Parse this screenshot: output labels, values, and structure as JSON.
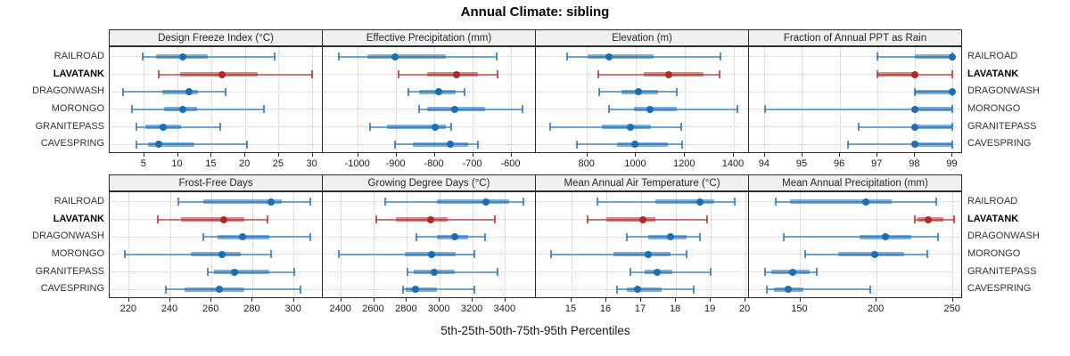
{
  "title": "Annual Climate: sibling",
  "xlabel": "5th-25th-50th-75th-95th Percentiles",
  "percentile_labels": [
    "5th",
    "25th",
    "50th",
    "75th",
    "95th"
  ],
  "sites": [
    "RAILROAD",
    "LAVATANK",
    "DRAGONWASH",
    "MORONGO",
    "GRANITEPASS",
    "CAVESPRING"
  ],
  "highlight_site": "LAVATANK",
  "colors": {
    "normal": "#1c6eb4",
    "highlight": "#b22828",
    "grid": "#cdcdcd",
    "strip_bg": "#f0f0f0",
    "border": "#2b2b2b"
  },
  "chart_data": [
    {
      "type": "dotplot-range",
      "title": "Design Freeze Index (°C)",
      "xlim": [
        0,
        31.5
      ],
      "ticks": [
        5,
        10,
        15,
        20,
        25,
        30
      ],
      "series": [
        {
          "name": "RAILROAD",
          "percentiles": [
            4.8,
            6.8,
            10.7,
            14.4,
            24.3
          ]
        },
        {
          "name": "LAVATANK",
          "percentiles": [
            7.1,
            10.3,
            16.6,
            21.8,
            29.9
          ]
        },
        {
          "name": "DRAGONWASH",
          "percentiles": [
            1.9,
            7.7,
            11.6,
            13.0,
            17.1
          ]
        },
        {
          "name": "MORONGO",
          "percentiles": [
            3.2,
            7.9,
            10.7,
            12.8,
            22.7
          ]
        },
        {
          "name": "GRANITEPASS",
          "percentiles": [
            3.9,
            5.1,
            7.8,
            10.4,
            16.3
          ]
        },
        {
          "name": "CAVESPRING",
          "percentiles": [
            3.9,
            5.5,
            7.2,
            12.5,
            20.3
          ]
        }
      ]
    },
    {
      "type": "dotplot-range",
      "title": "Effective Precipitation (mm)",
      "xlim": [
        -1090,
        -536
      ],
      "ticks": [
        -1000,
        -900,
        -800,
        -700,
        -600
      ],
      "series": [
        {
          "name": "RAILROAD",
          "percentiles": [
            -1050,
            -975,
            -903,
            -772,
            -639
          ]
        },
        {
          "name": "LAVATANK",
          "percentiles": [
            -895,
            -820,
            -743,
            -688,
            -637
          ]
        },
        {
          "name": "DRAGONWASH",
          "percentiles": [
            -869,
            -841,
            -789,
            -745,
            -722
          ]
        },
        {
          "name": "MORONGO",
          "percentiles": [
            -840,
            -820,
            -748,
            -668,
            -570
          ]
        },
        {
          "name": "GRANITEPASS",
          "percentiles": [
            -968,
            -925,
            -800,
            -770,
            -757
          ]
        },
        {
          "name": "CAVESPRING",
          "percentiles": [
            -903,
            -858,
            -759,
            -712,
            -688
          ]
        }
      ]
    },
    {
      "type": "dotplot-range",
      "title": "Elevation (m)",
      "xlim": [
        593,
        1462
      ],
      "ticks": [
        800,
        1000,
        1200,
        1400
      ],
      "series": [
        {
          "name": "RAILROAD",
          "percentiles": [
            716,
            800,
            887,
            1073,
            1345
          ]
        },
        {
          "name": "LAVATANK",
          "percentiles": [
            844,
            1030,
            1135,
            1275,
            1342
          ]
        },
        {
          "name": "DRAGONWASH",
          "percentiles": [
            847,
            940,
            1011,
            1090,
            1167
          ]
        },
        {
          "name": "MORONGO",
          "percentiles": [
            887,
            990,
            1055,
            1165,
            1415
          ]
        },
        {
          "name": "GRANITEPASS",
          "percentiles": [
            647,
            860,
            978,
            1060,
            1185
          ]
        },
        {
          "name": "CAVESPRING",
          "percentiles": [
            756,
            920,
            996,
            1130,
            1189
          ]
        }
      ]
    },
    {
      "type": "dotplot-range",
      "title": "Fraction of Annual PPT as Rain",
      "xlim": [
        93.6,
        99.25
      ],
      "ticks": [
        94,
        95,
        96,
        97,
        98,
        99
      ],
      "series": [
        {
          "name": "RAILROAD",
          "percentiles": [
            97,
            98,
            99,
            99,
            99
          ]
        },
        {
          "name": "LAVATANK",
          "percentiles": [
            97,
            97,
            98,
            98,
            99
          ]
        },
        {
          "name": "DRAGONWASH",
          "percentiles": [
            98,
            98,
            99,
            99,
            99
          ]
        },
        {
          "name": "MORONGO",
          "percentiles": [
            94,
            98,
            98,
            99,
            99
          ]
        },
        {
          "name": "GRANITEPASS",
          "percentiles": [
            96.5,
            98,
            98,
            99,
            99
          ]
        },
        {
          "name": "CAVESPRING",
          "percentiles": [
            96.2,
            98,
            98,
            99,
            99
          ]
        }
      ]
    },
    {
      "type": "dotplot-range",
      "title": "Frost-Free Days",
      "xlim": [
        211,
        314
      ],
      "ticks": [
        220,
        240,
        260,
        280,
        300
      ],
      "series": [
        {
          "name": "RAILROAD",
          "percentiles": [
            244,
            256,
            289,
            294,
            308
          ]
        },
        {
          "name": "LAVATANK",
          "percentiles": [
            234,
            245,
            266,
            276,
            287
          ]
        },
        {
          "name": "DRAGONWASH",
          "percentiles": [
            256,
            263,
            275,
            288,
            308
          ]
        },
        {
          "name": "MORONGO",
          "percentiles": [
            218,
            250,
            265,
            274,
            289
          ]
        },
        {
          "name": "GRANITEPASS",
          "percentiles": [
            258,
            261,
            271,
            288,
            300
          ]
        },
        {
          "name": "CAVESPRING",
          "percentiles": [
            238,
            247,
            264,
            276,
            303
          ]
        }
      ]
    },
    {
      "type": "dotplot-range",
      "title": "Growing Degree Days (°C)",
      "xlim": [
        2293,
        3585
      ],
      "ticks": [
        2400,
        2600,
        2800,
        3000,
        3200,
        3400
      ],
      "series": [
        {
          "name": "RAILROAD",
          "percentiles": [
            2670,
            2980,
            3280,
            3420,
            3510
          ]
        },
        {
          "name": "LAVATANK",
          "percentiles": [
            2615,
            2730,
            2945,
            3050,
            3335
          ]
        },
        {
          "name": "DRAGONWASH",
          "percentiles": [
            2855,
            2980,
            3090,
            3175,
            3275
          ]
        },
        {
          "name": "MORONGO",
          "percentiles": [
            2385,
            2785,
            2950,
            3095,
            3210
          ]
        },
        {
          "name": "GRANITEPASS",
          "percentiles": [
            2805,
            2840,
            2965,
            3090,
            3350
          ]
        },
        {
          "name": "CAVESPRING",
          "percentiles": [
            2775,
            2795,
            2850,
            2980,
            3210
          ]
        }
      ]
    },
    {
      "type": "dotplot-range",
      "title": "Mean Annual Air Temperature (°C)",
      "xlim": [
        14.0,
        20.1
      ],
      "ticks": [
        15,
        16,
        17,
        18,
        19,
        20
      ],
      "series": [
        {
          "name": "RAILROAD",
          "percentiles": [
            15.75,
            17.4,
            18.7,
            19.1,
            19.7
          ]
        },
        {
          "name": "LAVATANK",
          "percentiles": [
            15.45,
            16.0,
            17.05,
            17.4,
            18.9
          ]
        },
        {
          "name": "DRAGONWASH",
          "percentiles": [
            16.6,
            17.2,
            17.85,
            18.3,
            18.7
          ]
        },
        {
          "name": "MORONGO",
          "percentiles": [
            14.4,
            16.2,
            17.2,
            17.85,
            18.3
          ]
        },
        {
          "name": "GRANITEPASS",
          "percentiles": [
            16.7,
            17.1,
            17.45,
            17.9,
            19.0
          ]
        },
        {
          "name": "CAVESPRING",
          "percentiles": [
            16.3,
            16.6,
            16.9,
            17.6,
            18.5
          ]
        }
      ]
    },
    {
      "type": "dotplot-range",
      "title": "Mean Annual Precipitation (mm)",
      "xlim": [
        117,
        256
      ],
      "ticks": [
        150,
        200,
        250
      ],
      "series": [
        {
          "name": "RAILROAD",
          "percentiles": [
            134,
            143,
            193,
            210,
            239
          ]
        },
        {
          "name": "LAVATANK",
          "percentiles": [
            225,
            227,
            234,
            244,
            251
          ]
        },
        {
          "name": "DRAGONWASH",
          "percentiles": [
            139,
            189,
            206,
            223,
            240
          ]
        },
        {
          "name": "MORONGO",
          "percentiles": [
            153,
            175,
            199,
            218,
            233
          ]
        },
        {
          "name": "GRANITEPASS",
          "percentiles": [
            127,
            131,
            145,
            156,
            161
          ]
        },
        {
          "name": "CAVESPRING",
          "percentiles": [
            128,
            133,
            142,
            152,
            196
          ]
        }
      ]
    }
  ]
}
